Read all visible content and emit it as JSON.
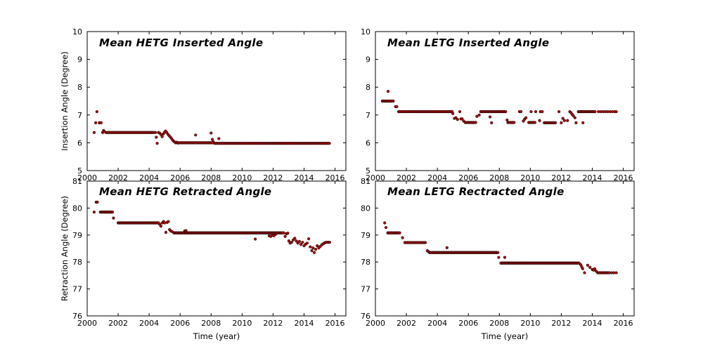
{
  "figure": {
    "background": "#ffffff",
    "axis_color": "#000000",
    "marker_color": "#aa1111",
    "marker_edge_color": "#220000"
  },
  "chart_data": [
    {
      "id": "hetg-inserted",
      "type": "scatter",
      "title": "Mean HETG Inserted Angle",
      "xlabel": "",
      "ylabel": "Insertion Angle (Degree)",
      "xlim": [
        2000,
        2016.7
      ],
      "ylim": [
        5,
        10
      ],
      "xticks": [
        2000,
        2002,
        2004,
        2006,
        2008,
        2010,
        2012,
        2014,
        2016
      ],
      "yticks": [
        5,
        6,
        7,
        8,
        9,
        10
      ],
      "grid": false,
      "legend": "none",
      "series": {
        "runs": [
          {
            "x0": 2001.22,
            "x1": 2004.32,
            "dx": 0.07,
            "y": 6.37
          },
          {
            "x0": 2005.92,
            "x1": 2008.05,
            "dx": 0.08,
            "y": 6.0
          },
          {
            "x0": 2008.22,
            "x1": 2015.62,
            "dx": 0.072,
            "y": 5.98
          }
        ],
        "points": [
          [
            2000.45,
            6.37
          ],
          [
            2000.55,
            6.72
          ],
          [
            2000.63,
            7.12
          ],
          [
            2000.78,
            6.72
          ],
          [
            2000.9,
            6.72
          ],
          [
            2001.0,
            6.37
          ],
          [
            2001.06,
            6.44
          ],
          [
            2001.12,
            6.4
          ],
          [
            2004.4,
            6.37
          ],
          [
            2004.46,
            6.2
          ],
          [
            2004.52,
            5.98
          ],
          [
            2004.6,
            6.37
          ],
          [
            2004.68,
            6.35
          ],
          [
            2004.76,
            6.3
          ],
          [
            2004.84,
            6.22
          ],
          [
            2004.92,
            6.32
          ],
          [
            2005.0,
            6.38
          ],
          [
            2005.06,
            6.42
          ],
          [
            2005.14,
            6.37
          ],
          [
            2005.22,
            6.3
          ],
          [
            2005.3,
            6.25
          ],
          [
            2005.38,
            6.2
          ],
          [
            2005.46,
            6.14
          ],
          [
            2005.54,
            6.08
          ],
          [
            2005.62,
            6.04
          ],
          [
            2005.7,
            6.0
          ],
          [
            2005.78,
            6.02
          ],
          [
            2005.85,
            5.99
          ],
          [
            2007.0,
            6.28
          ],
          [
            2008.0,
            6.35
          ],
          [
            2008.08,
            6.12
          ],
          [
            2008.14,
            6.03
          ],
          [
            2008.5,
            6.15
          ]
        ]
      }
    },
    {
      "id": "letg-inserted",
      "type": "scatter",
      "title": "Mean LETG Inserted Angle",
      "xlabel": "",
      "ylabel": "",
      "xlim": [
        2000,
        2016.7
      ],
      "ylim": [
        5,
        10
      ],
      "xticks": [
        2000,
        2002,
        2004,
        2006,
        2008,
        2010,
        2012,
        2014,
        2016
      ],
      "yticks": [
        5,
        6,
        7,
        8,
        9,
        10
      ],
      "grid": false,
      "legend": "none",
      "series": {
        "runs": [
          {
            "x0": 2000.45,
            "x1": 2001.15,
            "dx": 0.07,
            "y": 7.5
          },
          {
            "x0": 2001.5,
            "x1": 2004.95,
            "dx": 0.072,
            "y": 7.12
          },
          {
            "x0": 2005.8,
            "x1": 2006.45,
            "dx": 0.075,
            "y": 6.73
          },
          {
            "x0": 2006.8,
            "x1": 2008.4,
            "dx": 0.07,
            "y": 7.12
          },
          {
            "x0": 2008.55,
            "x1": 2008.95,
            "dx": 0.08,
            "y": 6.73
          },
          {
            "x0": 2009.9,
            "x1": 2010.3,
            "dx": 0.08,
            "y": 6.73
          },
          {
            "x0": 2010.9,
            "x1": 2011.65,
            "dx": 0.08,
            "y": 6.72
          },
          {
            "x0": 2013.1,
            "x1": 2014.2,
            "dx": 0.06,
            "y": 7.12
          }
        ],
        "points": [
          [
            2000.82,
            7.85
          ],
          [
            2001.3,
            7.3
          ],
          [
            2001.38,
            7.3
          ],
          [
            2005.0,
            7.05
          ],
          [
            2005.1,
            6.88
          ],
          [
            2005.2,
            6.9
          ],
          [
            2005.3,
            6.84
          ],
          [
            2005.45,
            7.12
          ],
          [
            2005.52,
            6.86
          ],
          [
            2005.6,
            6.86
          ],
          [
            2005.7,
            6.78
          ],
          [
            2006.55,
            6.95
          ],
          [
            2006.7,
            7.0
          ],
          [
            2007.4,
            6.93
          ],
          [
            2007.5,
            6.72
          ],
          [
            2008.5,
            6.82
          ],
          [
            2009.3,
            7.12
          ],
          [
            2009.4,
            7.12
          ],
          [
            2009.55,
            6.78
          ],
          [
            2009.63,
            6.85
          ],
          [
            2009.72,
            6.9
          ],
          [
            2010.05,
            7.12
          ],
          [
            2010.35,
            7.12
          ],
          [
            2010.6,
            6.8
          ],
          [
            2010.65,
            7.12
          ],
          [
            2010.77,
            7.12
          ],
          [
            2011.85,
            7.12
          ],
          [
            2012.0,
            6.72
          ],
          [
            2012.1,
            6.88
          ],
          [
            2012.2,
            6.8
          ],
          [
            2012.4,
            6.8
          ],
          [
            2012.55,
            7.12
          ],
          [
            2012.63,
            7.08
          ],
          [
            2012.7,
            7.02
          ],
          [
            2012.78,
            6.97
          ],
          [
            2012.88,
            6.9
          ],
          [
            2012.95,
            6.72
          ],
          [
            2013.4,
            6.72
          ],
          [
            2014.4,
            7.12
          ],
          [
            2014.55,
            7.12
          ],
          [
            2014.7,
            7.12
          ],
          [
            2014.85,
            7.12
          ],
          [
            2015.0,
            7.12
          ],
          [
            2015.15,
            7.12
          ],
          [
            2015.3,
            7.12
          ],
          [
            2015.45,
            7.12
          ],
          [
            2015.55,
            7.12
          ]
        ]
      }
    },
    {
      "id": "hetg-retracted",
      "type": "scatter",
      "title": "Mean HETG Retracted Angle",
      "xlabel": "Time (year)",
      "ylabel": "Retraction Angle (Degree)",
      "xlim": [
        2000,
        2016.7
      ],
      "ylim": [
        76,
        81
      ],
      "xticks": [
        2000,
        2002,
        2004,
        2006,
        2008,
        2010,
        2012,
        2014,
        2016
      ],
      "yticks": [
        76,
        77,
        78,
        79,
        80,
        81
      ],
      "grid": false,
      "legend": "none",
      "series": {
        "runs": [
          {
            "x0": 2000.85,
            "x1": 2001.6,
            "dx": 0.065,
            "y": 79.85
          },
          {
            "x0": 2002.0,
            "x1": 2004.6,
            "dx": 0.062,
            "y": 79.45
          },
          {
            "x0": 2005.6,
            "x1": 2012.6,
            "dx": 0.058,
            "y": 79.08
          }
        ],
        "points": [
          [
            2000.45,
            79.85
          ],
          [
            2000.58,
            80.22
          ],
          [
            2000.66,
            80.22
          ],
          [
            2001.7,
            79.63
          ],
          [
            2004.68,
            79.4
          ],
          [
            2004.76,
            79.33
          ],
          [
            2004.85,
            79.45
          ],
          [
            2004.93,
            79.5
          ],
          [
            2005.0,
            79.45
          ],
          [
            2005.08,
            79.1
          ],
          [
            2005.16,
            79.47
          ],
          [
            2005.24,
            79.5
          ],
          [
            2005.32,
            79.2
          ],
          [
            2005.4,
            79.15
          ],
          [
            2005.5,
            79.12
          ],
          [
            2006.3,
            79.15
          ],
          [
            2006.38,
            79.16
          ],
          [
            2010.85,
            78.85
          ],
          [
            2011.75,
            78.97
          ],
          [
            2011.85,
            78.95
          ],
          [
            2011.95,
            79.0
          ],
          [
            2012.05,
            78.97
          ],
          [
            2012.15,
            79.02
          ],
          [
            2012.7,
            79.08
          ],
          [
            2012.78,
            78.95
          ],
          [
            2012.87,
            79.05
          ],
          [
            2012.95,
            79.07
          ],
          [
            2013.02,
            78.78
          ],
          [
            2013.1,
            78.7
          ],
          [
            2013.2,
            78.73
          ],
          [
            2013.3,
            78.82
          ],
          [
            2013.4,
            78.88
          ],
          [
            2013.5,
            78.78
          ],
          [
            2013.6,
            78.7
          ],
          [
            2013.7,
            78.76
          ],
          [
            2013.8,
            78.65
          ],
          [
            2013.9,
            78.73
          ],
          [
            2014.0,
            78.6
          ],
          [
            2014.1,
            78.66
          ],
          [
            2014.2,
            78.7
          ],
          [
            2014.3,
            78.86
          ],
          [
            2014.4,
            78.56
          ],
          [
            2014.5,
            78.42
          ],
          [
            2014.58,
            78.52
          ],
          [
            2014.66,
            78.35
          ],
          [
            2014.75,
            78.47
          ],
          [
            2014.85,
            78.6
          ],
          [
            2014.95,
            78.52
          ],
          [
            2015.05,
            78.58
          ],
          [
            2015.15,
            78.64
          ],
          [
            2015.25,
            78.68
          ],
          [
            2015.33,
            78.71
          ],
          [
            2015.42,
            78.73
          ],
          [
            2015.5,
            78.73
          ],
          [
            2015.58,
            78.73
          ],
          [
            2015.65,
            78.73
          ]
        ]
      }
    },
    {
      "id": "letg-retracted",
      "type": "scatter",
      "title": "Mean LETG Rectracted Angle",
      "xlabel": "Time (year)",
      "ylabel": "",
      "xlim": [
        2000,
        2016.7
      ],
      "ylim": [
        76,
        81
      ],
      "xticks": [
        2000,
        2002,
        2004,
        2006,
        2008,
        2010,
        2012,
        2014,
        2016
      ],
      "yticks": [
        76,
        77,
        78,
        79,
        80,
        81
      ],
      "grid": false,
      "legend": "none",
      "series": {
        "runs": [
          {
            "x0": 2000.8,
            "x1": 2001.55,
            "dx": 0.07,
            "y": 79.08
          },
          {
            "x0": 2001.9,
            "x1": 2003.25,
            "dx": 0.078,
            "y": 78.72
          },
          {
            "x0": 2003.5,
            "x1": 2007.9,
            "dx": 0.058,
            "y": 78.35
          },
          {
            "x0": 2008.1,
            "x1": 2013.15,
            "dx": 0.058,
            "y": 77.96
          },
          {
            "x0": 2014.35,
            "x1": 2015.1,
            "dx": 0.068,
            "y": 77.6
          }
        ],
        "points": [
          [
            2000.6,
            79.45
          ],
          [
            2000.68,
            79.28
          ],
          [
            2001.75,
            78.9
          ],
          [
            2003.35,
            78.42
          ],
          [
            2003.43,
            78.38
          ],
          [
            2004.62,
            78.53
          ],
          [
            2007.96,
            78.17
          ],
          [
            2008.35,
            78.17
          ],
          [
            2013.25,
            77.9
          ],
          [
            2013.32,
            77.82
          ],
          [
            2013.38,
            77.75
          ],
          [
            2013.5,
            77.6
          ],
          [
            2013.7,
            77.88
          ],
          [
            2013.85,
            77.8
          ],
          [
            2014.0,
            77.72
          ],
          [
            2014.08,
            77.7
          ],
          [
            2014.16,
            77.75
          ],
          [
            2014.25,
            77.66
          ],
          [
            2015.25,
            77.6
          ],
          [
            2015.4,
            77.6
          ],
          [
            2015.55,
            77.6
          ]
        ]
      }
    }
  ]
}
